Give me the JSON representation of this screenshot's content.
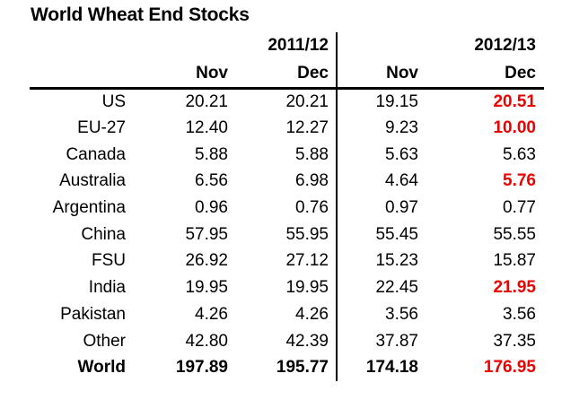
{
  "title": "World Wheat End Stocks",
  "colors": {
    "background": "#ffffff",
    "text": "#000000",
    "rule": "#000000",
    "highlight_red": "#ee0000"
  },
  "table": {
    "group_headers": [
      "2011/12",
      "2012/13"
    ],
    "col_headers": [
      "Nov",
      "Dec",
      "Nov",
      "Dec"
    ],
    "rows": [
      {
        "label": "US",
        "values": [
          "20.21",
          "20.21",
          "19.15",
          "20.51"
        ],
        "red": [
          false,
          false,
          false,
          true
        ],
        "bold": false
      },
      {
        "label": "EU-27",
        "values": [
          "12.40",
          "12.27",
          "9.23",
          "10.00"
        ],
        "red": [
          false,
          false,
          false,
          true
        ],
        "bold": false
      },
      {
        "label": "Canada",
        "values": [
          "5.88",
          "5.88",
          "5.63",
          "5.63"
        ],
        "red": [
          false,
          false,
          false,
          false
        ],
        "bold": false
      },
      {
        "label": "Australia",
        "values": [
          "6.56",
          "6.98",
          "4.64",
          "5.76"
        ],
        "red": [
          false,
          false,
          false,
          true
        ],
        "bold": false
      },
      {
        "label": "Argentina",
        "values": [
          "0.96",
          "0.76",
          "0.97",
          "0.77"
        ],
        "red": [
          false,
          false,
          false,
          false
        ],
        "bold": false
      },
      {
        "label": "China",
        "values": [
          "57.95",
          "55.95",
          "55.45",
          "55.55"
        ],
        "red": [
          false,
          false,
          false,
          false
        ],
        "bold": false
      },
      {
        "label": "FSU",
        "values": [
          "26.92",
          "27.12",
          "15.23",
          "15.87"
        ],
        "red": [
          false,
          false,
          false,
          false
        ],
        "bold": false
      },
      {
        "label": "India",
        "values": [
          "19.95",
          "19.95",
          "22.45",
          "21.95"
        ],
        "red": [
          false,
          false,
          false,
          true
        ],
        "bold": false
      },
      {
        "label": "Pakistan",
        "values": [
          "4.26",
          "4.26",
          "3.56",
          "3.56"
        ],
        "red": [
          false,
          false,
          false,
          false
        ],
        "bold": false
      },
      {
        "label": "Other",
        "values": [
          "42.80",
          "42.39",
          "37.87",
          "37.35"
        ],
        "red": [
          false,
          false,
          false,
          false
        ],
        "bold": false
      },
      {
        "label": "World",
        "values": [
          "197.89",
          "195.77",
          "174.18",
          "176.95"
        ],
        "red": [
          false,
          false,
          false,
          true
        ],
        "bold": true
      }
    ]
  },
  "chart_data": {
    "type": "table",
    "title": "World Wheat End Stocks",
    "column_groups": [
      "2011/12",
      "2011/12",
      "2012/13",
      "2012/13"
    ],
    "columns": [
      "Nov",
      "Dec",
      "Nov",
      "Dec"
    ],
    "row_labels": [
      "US",
      "EU-27",
      "Canada",
      "Australia",
      "Argentina",
      "China",
      "FSU",
      "India",
      "Pakistan",
      "Other",
      "World"
    ],
    "values": [
      [
        20.21,
        20.21,
        19.15,
        20.51
      ],
      [
        12.4,
        12.27,
        9.23,
        10.0
      ],
      [
        5.88,
        5.88,
        5.63,
        5.63
      ],
      [
        6.56,
        6.98,
        4.64,
        5.76
      ],
      [
        0.96,
        0.76,
        0.97,
        0.77
      ],
      [
        57.95,
        55.95,
        55.45,
        55.55
      ],
      [
        26.92,
        27.12,
        15.23,
        15.87
      ],
      [
        19.95,
        19.95,
        22.45,
        21.95
      ],
      [
        4.26,
        4.26,
        3.56,
        3.56
      ],
      [
        42.8,
        42.39,
        37.87,
        37.35
      ],
      [
        197.89,
        195.77,
        174.18,
        176.95
      ]
    ],
    "red_highlight_cells": [
      [
        0,
        3
      ],
      [
        1,
        3
      ],
      [
        3,
        3
      ],
      [
        7,
        3
      ],
      [
        10,
        3
      ]
    ],
    "bold_rows": [
      "World"
    ]
  }
}
